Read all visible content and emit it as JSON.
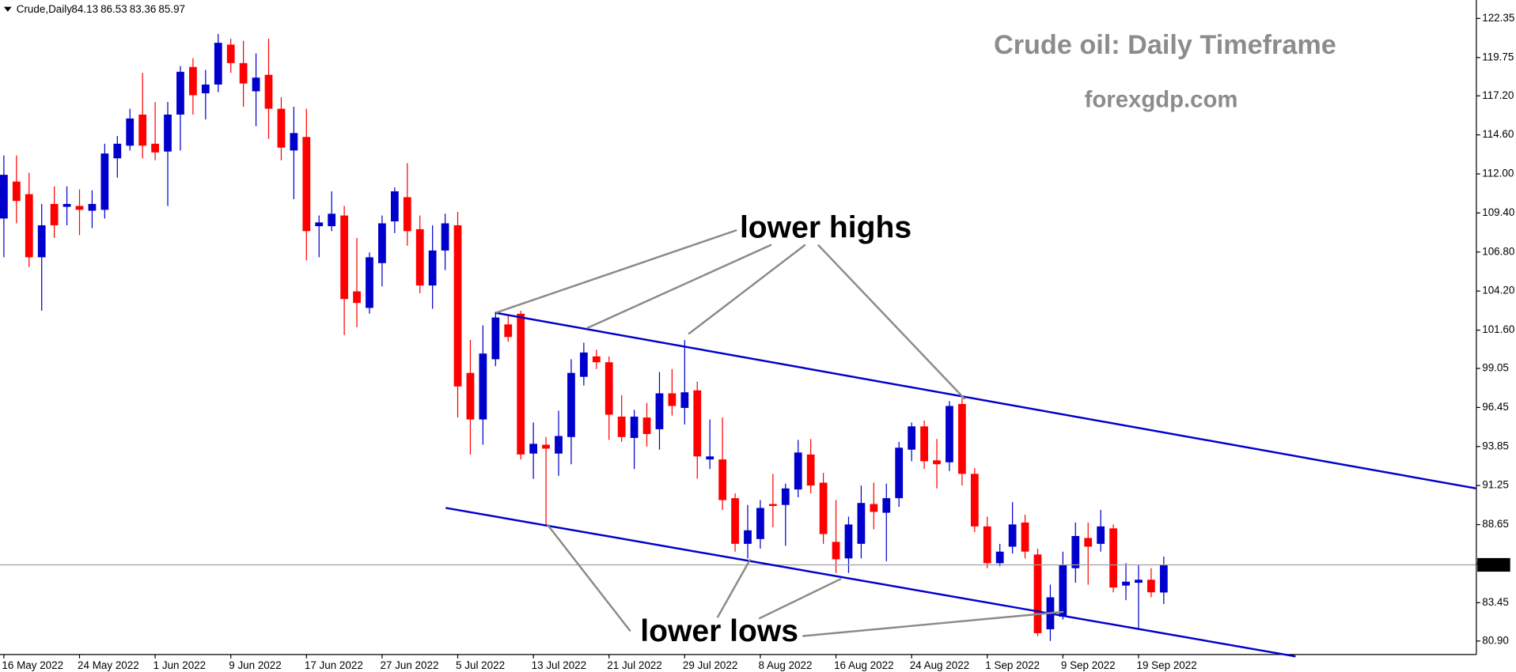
{
  "chart_data": {
    "type": "candlestick",
    "symbol": "Crude,Daily",
    "annotations": [
      "Crude oil: Daily Timeframe",
      "forexgdp.com",
      "lower highs",
      "lower lows"
    ],
    "up_color": "#0000cd",
    "down_color": "#ff0000",
    "ylim": [
      80.0,
      123.58
    ],
    "yticks": [
      122.35,
      119.75,
      {
        "value": 117.2,
        "label": "117.20"
      },
      {
        "value": 114.6,
        "label": "114.60"
      },
      {
        "value": 112,
        "label": "112.00"
      },
      {
        "value": 109.4,
        "label": "109.40"
      },
      {
        "value": 106.8,
        "label": "106.80"
      },
      {
        "value": 104.2,
        "label": "104.20"
      },
      {
        "value": 101.6,
        "label": "101.60"
      },
      99.05,
      96.45,
      93.85,
      91.25,
      88.65,
      86.05,
      83.45,
      {
        "value": 80.9,
        "label": "80.90"
      }
    ],
    "categories": [
      "16 May 2022",
      null,
      null,
      null,
      null,
      null,
      "24 May 2022",
      null,
      null,
      null,
      null,
      null,
      "1 Jun 2022",
      null,
      null,
      null,
      null,
      null,
      "9 Jun 2022",
      null,
      null,
      null,
      null,
      null,
      "17 Jun 2022",
      null,
      null,
      null,
      null,
      null,
      "27 Jun 2022",
      null,
      null,
      null,
      null,
      null,
      "5 Jul 2022",
      null,
      null,
      null,
      null,
      null,
      "13 Jul 2022",
      null,
      null,
      null,
      null,
      null,
      "21 Jul 2022",
      null,
      null,
      null,
      null,
      null,
      "29 Jul 2022",
      null,
      null,
      null,
      null,
      null,
      "8 Aug 2022",
      null,
      null,
      null,
      null,
      null,
      "16 Aug 2022",
      null,
      null,
      null,
      null,
      null,
      "24 Aug 2022",
      null,
      null,
      null,
      null,
      null,
      "1 Sep 2022",
      null,
      null,
      null,
      null,
      null,
      "9 Sep 2022",
      null,
      null,
      null,
      null,
      null,
      "19 Sep 2022",
      null,
      null
    ],
    "open": [
      109.03,
      111.49,
      110.65,
      106.45,
      110.0,
      109.81,
      109.87,
      109.55,
      109.61,
      113.04,
      113.88,
      115.95,
      114.01,
      113.49,
      115.95,
      119.12,
      117.37,
      117.95,
      120.61,
      119.38,
      117.5,
      118.6,
      116.34,
      113.56,
      114.46,
      108.52,
      108.52,
      109.23,
      104.18,
      103.08,
      106.06,
      108.84,
      110.45,
      108.32,
      104.57,
      106.9,
      108.58,
      98.75,
      95.65,
      99.66,
      101.98,
      102.69,
      93.38,
      93.97,
      93.38,
      94.48,
      98.49,
      99.85,
      99.46,
      95.84,
      94.42,
      95.78,
      95.0,
      97.39,
      96.42,
      97.59,
      92.99,
      92.99,
      90.41,
      87.37,
      87.69,
      90.02,
      89.96,
      90.99,
      93.32,
      91.44,
      87.5,
      86.4,
      87.37,
      90.02,
      89.44,
      90.41,
      93.64,
      95.19,
      92.93,
      92.8,
      96.68,
      92.03,
      88.53,
      86.08,
      87.18,
      88.79,
      86.66,
      81.68,
      82.52,
      85.75,
      87.76,
      87.37,
      88.4,
      84.59,
      84.78,
      84.98,
      84.13
    ],
    "high": [
      113.23,
      113.23,
      112.07,
      110.0,
      111.17,
      111.17,
      110.97,
      110.91,
      114.01,
      114.53,
      116.34,
      118.73,
      116.79,
      116.79,
      119.18,
      119.7,
      118.92,
      121.32,
      121.0,
      120.86,
      120.02,
      121.0,
      117.11,
      116.47,
      116.34,
      109.23,
      110.84,
      109.87,
      107.74,
      106.77,
      109.23,
      111.1,
      112.72,
      109.23,
      108.58,
      109.35,
      109.48,
      100.95,
      101.92,
      102.76,
      102.57,
      102.89,
      95.45,
      94.48,
      96.23,
      99.66,
      100.76,
      100.3,
      99.85,
      97.26,
      96.29,
      96.75,
      98.82,
      99.01,
      100.95,
      98.17,
      95.65,
      95.78,
      90.73,
      89.96,
      90.28,
      92.03,
      91.38,
      94.29,
      94.35,
      92.09,
      90.28,
      89.18,
      91.25,
      91.44,
      91.38,
      94.16,
      95.45,
      95.58,
      94.35,
      96.88,
      97.07,
      92.41,
      89.18,
      87.37,
      90.15,
      89.31,
      87.05,
      84.65,
      86.85,
      88.79,
      88.79,
      89.63,
      88.66,
      86.08,
      85.95,
      85.75,
      86.53
    ],
    "low": [
      106.45,
      108.71,
      105.8,
      102.89,
      107.74,
      108.58,
      107.93,
      108.39,
      109.03,
      111.75,
      113.56,
      113.04,
      112.91,
      109.87,
      113.56,
      115.95,
      115.63,
      117.44,
      118.73,
      116.47,
      115.17,
      114.33,
      112.91,
      110.32,
      106.25,
      106.45,
      108.19,
      101.27,
      101.79,
      102.69,
      104.51,
      108.06,
      107.22,
      104.05,
      103.02,
      105.6,
      95.78,
      93.32,
      93.97,
      99.2,
      100.82,
      92.99,
      91.7,
      88.53,
      91.9,
      92.67,
      97.91,
      99.01,
      94.29,
      94.16,
      92.35,
      93.84,
      93.64,
      95.91,
      95.32,
      91.7,
      92.35,
      89.63,
      86.85,
      86.4,
      87.05,
      88.47,
      87.24,
      90.47,
      90.73,
      87.37,
      85.43,
      85.43,
      86.4,
      88.34,
      86.21,
      89.83,
      92.87,
      92.35,
      91.06,
      92.22,
      91.25,
      88.15,
      85.75,
      85.88,
      86.72,
      86.4,
      81.22,
      80.9,
      82.33,
      84.78,
      84.65,
      86.85,
      84.14,
      83.62,
      81.68,
      83.81,
      83.36
    ],
    "close": [
      111.94,
      110.2,
      106.45,
      108.58,
      108.58,
      110.0,
      109.61,
      110.0,
      113.36,
      114.01,
      115.69,
      113.88,
      113.43,
      115.95,
      118.8,
      117.24,
      117.95,
      120.73,
      119.38,
      118.02,
      118.41,
      116.34,
      113.75,
      114.72,
      108.19,
      108.77,
      109.35,
      103.67,
      103.41,
      106.45,
      108.71,
      110.84,
      108.19,
      104.57,
      106.9,
      108.71,
      97.85,
      95.65,
      100.04,
      102.44,
      101.14,
      93.32,
      94.03,
      93.71,
      94.55,
      98.75,
      100.11,
      99.46,
      95.97,
      94.48,
      95.84,
      94.68,
      97.39,
      96.55,
      97.46,
      93.19,
      93.19,
      90.28,
      87.37,
      88.27,
      89.76,
      89.89,
      91.06,
      93.45,
      91.25,
      88.02,
      86.34,
      88.66,
      90.09,
      89.5,
      90.41,
      93.77,
      95.19,
      92.87,
      92.67,
      96.55,
      92.03,
      88.53,
      86.08,
      86.85,
      88.66,
      86.85,
      81.42,
      83.81,
      85.95,
      87.89,
      87.18,
      88.53,
      84.46,
      84.85,
      84.98,
      84.14,
      85.97
    ]
  }
}
